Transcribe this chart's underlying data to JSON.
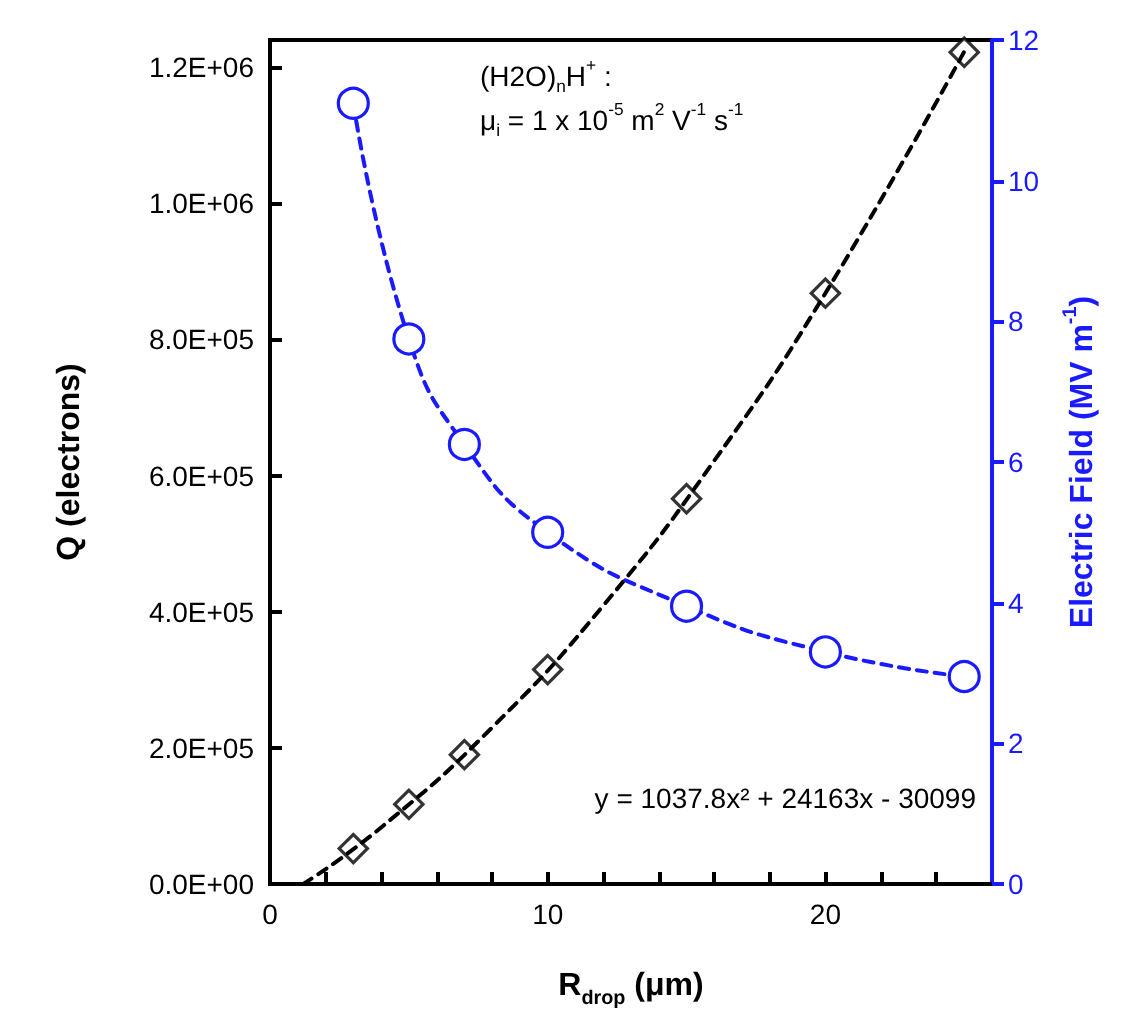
{
  "chart_data": {
    "type": "scatter",
    "xlabel": "R$_{drop}$ (μm)",
    "ylabel": "Q (electrons)",
    "y2label": "Electric Field (MV m$^{-1}$)",
    "xlim": [
      0,
      26
    ],
    "xticks": [
      0,
      {
        "value": 2,
        "label": null
      },
      {
        "value": 4,
        "label": null
      },
      {
        "value": 6,
        "label": null
      },
      {
        "value": 8,
        "label": null
      },
      10,
      {
        "value": 12,
        "label": null
      },
      {
        "value": 14,
        "label": null
      },
      {
        "value": 16,
        "label": null
      },
      {
        "value": 18,
        "label": null
      },
      20,
      {
        "value": 22,
        "label": null
      },
      {
        "value": 24,
        "label": null
      }
    ],
    "ylim": [
      0,
      1240000
    ],
    "yticks": [
      {
        "value": 0,
        "label": "0.0E+00"
      },
      {
        "value": 200000,
        "label": "2.0E+05"
      },
      {
        "value": 400000,
        "label": "4.0E+05"
      },
      {
        "value": 600000,
        "label": "6.0E+05"
      },
      {
        "value": 800000,
        "label": "8.0E+05"
      },
      {
        "value": 1000000,
        "label": "1.0E+06"
      },
      {
        "value": 1200000,
        "label": "1.2E+06"
      }
    ],
    "y2lim": [
      0,
      12
    ],
    "y2ticks": [
      0,
      2,
      4,
      6,
      8,
      10,
      12
    ],
    "grid": false,
    "annotations": [
      "(H2O)$_{n}$H$^{+}$ :",
      "μ$_{i}$ = 1 x 10$^{-5}$ m$^{2}$ V$^{-1}$ s$^{-1}$",
      "y = 1037.8x² + 24163x - 30099"
    ],
    "series": [
      {
        "type": "line",
        "color": "#000000",
        "x": [
          1.2,
          4,
          8,
          12,
          16,
          20,
          25
        ],
        "values": [
          0,
          83000,
          230000,
          409000,
          622000,
          868000,
          1223000
        ],
        "marker": "none",
        "line_style": "dashed"
      },
      {
        "color": "#000000",
        "x": [
          3,
          5,
          7,
          10,
          15,
          20,
          25
        ],
        "values": [
          52000,
          117000,
          190000,
          315000,
          566000,
          868000,
          1222000
        ],
        "marker": "diamond"
      },
      {
        "type": "line",
        "color": "#1a1aff",
        "axis": "y2",
        "x": [
          3,
          5,
          7,
          10,
          15,
          20,
          25
        ],
        "values": [
          11.1,
          7.75,
          6.25,
          5.0,
          3.95,
          3.3,
          2.95
        ],
        "marker": "circle",
        "line_style": "dashed"
      }
    ]
  }
}
